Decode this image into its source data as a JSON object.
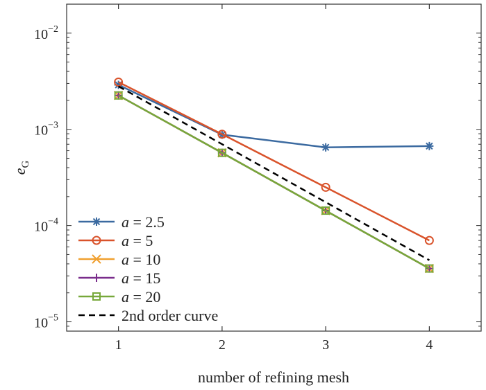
{
  "chart_data": {
    "type": "line",
    "title": "",
    "xlabel": "number of refining mesh",
    "ylabel": {
      "main": "e",
      "sub": "G"
    },
    "x": [
      1,
      2,
      3,
      4
    ],
    "xticks": [
      "1",
      "2",
      "3",
      "4"
    ],
    "xlim": [
      0.5,
      4.5
    ],
    "ylim": [
      8e-06,
      0.02
    ],
    "yscale": "log",
    "yticks": [
      {
        "value": 1e-05,
        "base": "10",
        "exp": "−5"
      },
      {
        "value": 0.0001,
        "base": "10",
        "exp": "−4"
      },
      {
        "value": 0.001,
        "base": "10",
        "exp": "−3"
      },
      {
        "value": 0.01,
        "base": "10",
        "exp": "−2"
      }
    ],
    "grid": false,
    "legend_position": "bottom-left",
    "series": [
      {
        "var": "a",
        "eq": " = 2.5",
        "color": "#3b6aa0",
        "marker": "asterisk",
        "dash": "",
        "values": [
          0.0029,
          0.00088,
          0.00065,
          0.00067
        ]
      },
      {
        "var": "a",
        "eq": " = 5",
        "color": "#d9532b",
        "marker": "circle",
        "dash": "",
        "values": [
          0.0031,
          0.00089,
          0.00025,
          7e-05
        ]
      },
      {
        "var": "a",
        "eq": " = 10",
        "color": "#f0a030",
        "marker": "x",
        "dash": "",
        "values": [
          0.00225,
          0.00057,
          0.000143,
          3.58e-05
        ]
      },
      {
        "var": "a",
        "eq": " = 15",
        "color": "#7a2d8c",
        "marker": "plus",
        "dash": "",
        "values": [
          0.00225,
          0.00057,
          0.000143,
          3.58e-05
        ]
      },
      {
        "var": "a",
        "eq": " = 20",
        "color": "#77a83a",
        "marker": "square",
        "dash": "",
        "values": [
          0.00225,
          0.00057,
          0.000143,
          3.58e-05
        ]
      },
      {
        "var": "",
        "eq": "2nd order curve",
        "color": "#000000",
        "marker": "none",
        "dash": "9,6",
        "values": [
          0.0028,
          0.0007,
          0.000175,
          4.37e-05
        ]
      }
    ]
  }
}
